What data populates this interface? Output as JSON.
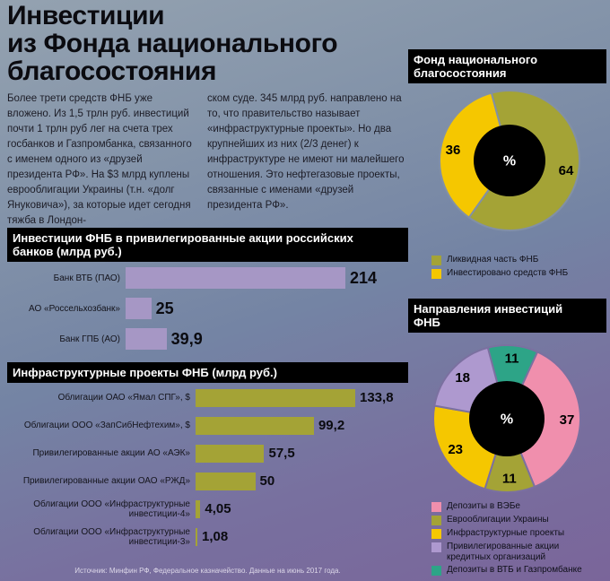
{
  "title": "Инвестиции\nиз Фонда национального\nблагосостояния",
  "intro": {
    "col1": "Более трети средств ФНБ уже вложено. Из 1,5 трлн руб. инвестиций почти 1 трлн руб лег на счета трех госбанков и Газпромбанка, связанного с именем одного из «друзей президента РФ». На $3 млрд куплены еврооблигации Украины (т.н. «долг Януковича»), за которые идет сегодня тяжба в Лондон-",
    "col2": "ском суде. 345 млрд руб. направлено на то, что правительство называет «инфраструктурные проекты». Но два крупнейших из них (2/3 денег) к инфраструктуре не имеют ни малейшего отношения. Это нефтегазовые проекты, связанные с именами «друзей президента РФ»."
  },
  "source": "Источник: Минфин РФ, Федеральное казначейство. Данные на июнь 2017 года.",
  "chart_data": [
    {
      "type": "bar",
      "orientation": "horizontal",
      "title": "Инвестиции ФНБ в привилегированные акции российских\nбанков (млрд руб.)",
      "unit": "млрд руб.",
      "categories": [
        "Банк ВТБ (ПАО)",
        "АО «Россельхозбанк»",
        "Банк ГПБ (АО)"
      ],
      "values": [
        214,
        25,
        39.9
      ],
      "value_labels": [
        "214",
        "25",
        "39,9"
      ],
      "bar_color": "#a697c5"
    },
    {
      "type": "bar",
      "orientation": "horizontal",
      "title": "Инфраструктурные проекты ФНБ (млрд руб.)",
      "unit": "млрд руб.",
      "categories": [
        "Облигации ОАО «Ямал СПГ», $",
        "Облигации ООО «ЗапСибНефтехим», $",
        "Привилегированные акции АО «АЭК»",
        "Привилегированные акции ОАО «РЖД»",
        "Облигации ООО «Инфраструктурные инвестиции-4»",
        "Облигации ООО «Инфраструктурные инвестиции-3»"
      ],
      "values": [
        133.8,
        99.2,
        57.5,
        50,
        4.05,
        1.08
      ],
      "value_labels": [
        "133,8",
        "99,2",
        "57,5",
        "50",
        "4,05",
        "1,08"
      ],
      "bar_color": "#a4a336"
    },
    {
      "type": "pie",
      "title": "Фонд национального\nблагосостояния",
      "center_label": "%",
      "units": "%",
      "start_angle": -15,
      "draw_sequence": [
        0,
        1
      ],
      "slices": [
        {
          "label": "Ликвидная часть ФНБ",
          "value": 64,
          "color": "#a4a336"
        },
        {
          "label": "Инвестировано средств ФНБ",
          "value": 36,
          "color": "#f5c700"
        }
      ]
    },
    {
      "type": "pie",
      "title": "Направления инвестиций\nФНБ",
      "center_label": "%",
      "units": "%",
      "start_angle": -15,
      "draw_sequence": [
        4,
        0,
        1,
        2,
        3
      ],
      "slices": [
        {
          "label": "Депозиты в ВЭБе",
          "value": 37,
          "color": "#f08fad"
        },
        {
          "label": "Еврооблигации Украины",
          "value": 11,
          "color": "#a4a336"
        },
        {
          "label": "Инфраструктурные проекты",
          "value": 23,
          "color": "#f5c700"
        },
        {
          "label": "Привилегированные акции кредитных организаций",
          "value": 18,
          "color": "#ae99cf"
        },
        {
          "label": "Депозиты в ВТБ и Газпромбанке",
          "value": 11,
          "color": "#2da487"
        }
      ]
    }
  ]
}
